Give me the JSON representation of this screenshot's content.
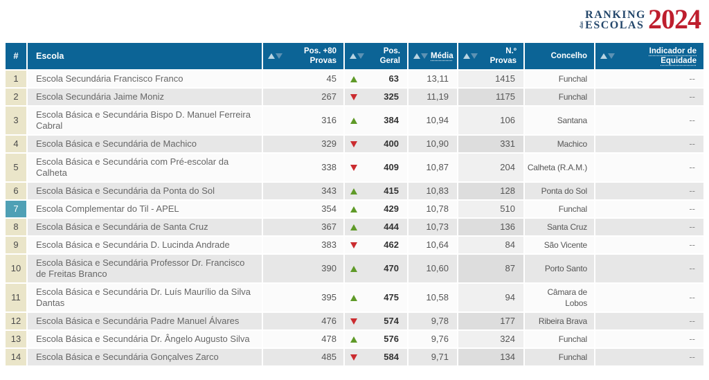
{
  "logo": {
    "title_line1": "Ranking",
    "preposition": "das",
    "title_line2": "Escolas",
    "year": "2024"
  },
  "table": {
    "columns": [
      {
        "key": "rank",
        "label": "#",
        "sortable": false
      },
      {
        "key": "escola",
        "label": "Escola",
        "sortable": false
      },
      {
        "key": "pos80_provas",
        "label": "Pos. +80 Provas",
        "sortable": true
      },
      {
        "key": "pos_geral",
        "label": "Pos. Geral",
        "sortable": true
      },
      {
        "key": "media",
        "label": "Média",
        "sortable": true,
        "tooltip": true
      },
      {
        "key": "n_provas",
        "label": "N.º Provas",
        "sortable": true
      },
      {
        "key": "concelho",
        "label": "Concelho",
        "sortable": false
      },
      {
        "key": "equidade",
        "label": "Indicador de Equidade",
        "sortable": true,
        "tooltip": true
      }
    ],
    "rows": [
      {
        "rank": "1",
        "escola": "Escola Secundária Francisco Franco",
        "pos80_provas": "45",
        "trend": "up",
        "pos_geral": "63",
        "media": "13,11",
        "n_provas": "1415",
        "concelho": "Funchal",
        "equidade": "--",
        "highlight": false
      },
      {
        "rank": "2",
        "escola": "Escola Secundária Jaime Moniz",
        "pos80_provas": "267",
        "trend": "down",
        "pos_geral": "325",
        "media": "11,19",
        "n_provas": "1175",
        "concelho": "Funchal",
        "equidade": "--",
        "highlight": false
      },
      {
        "rank": "3",
        "escola": "Escola Básica e Secundária Bispo D. Manuel Ferreira Cabral",
        "pos80_provas": "316",
        "trend": "up",
        "pos_geral": "384",
        "media": "10,94",
        "n_provas": "106",
        "concelho": "Santana",
        "equidade": "--",
        "highlight": false
      },
      {
        "rank": "4",
        "escola": "Escola Básica e Secundária de Machico",
        "pos80_provas": "329",
        "trend": "down",
        "pos_geral": "400",
        "media": "10,90",
        "n_provas": "331",
        "concelho": "Machico",
        "equidade": "--",
        "highlight": false
      },
      {
        "rank": "5",
        "escola": "Escola Básica e Secundária com Pré-escolar da Calheta",
        "pos80_provas": "338",
        "trend": "down",
        "pos_geral": "409",
        "media": "10,87",
        "n_provas": "204",
        "concelho": "Calheta (R.A.M.)",
        "equidade": "--",
        "highlight": false
      },
      {
        "rank": "6",
        "escola": "Escola Básica e Secundária da Ponta do Sol",
        "pos80_provas": "343",
        "trend": "up",
        "pos_geral": "415",
        "media": "10,83",
        "n_provas": "128",
        "concelho": "Ponta do Sol",
        "equidade": "--",
        "highlight": false
      },
      {
        "rank": "7",
        "escola": "Escola Complementar do Til - APEL",
        "pos80_provas": "354",
        "trend": "up",
        "pos_geral": "429",
        "media": "10,78",
        "n_provas": "510",
        "concelho": "Funchal",
        "equidade": "--",
        "highlight": true
      },
      {
        "rank": "8",
        "escola": "Escola Básica e Secundária de Santa Cruz",
        "pos80_provas": "367",
        "trend": "up",
        "pos_geral": "444",
        "media": "10,73",
        "n_provas": "136",
        "concelho": "Santa Cruz",
        "equidade": "--",
        "highlight": false
      },
      {
        "rank": "9",
        "escola": "Escola Básica e Secundária D. Lucinda Andrade",
        "pos80_provas": "383",
        "trend": "down",
        "pos_geral": "462",
        "media": "10,64",
        "n_provas": "84",
        "concelho": "São Vicente",
        "equidade": "--",
        "highlight": false
      },
      {
        "rank": "10",
        "escola": "Escola Básica e Secundária Professor Dr. Francisco de Freitas Branco",
        "pos80_provas": "390",
        "trend": "up",
        "pos_geral": "470",
        "media": "10,60",
        "n_provas": "87",
        "concelho": "Porto Santo",
        "equidade": "--",
        "highlight": false
      },
      {
        "rank": "11",
        "escola": "Escola Básica e Secundária Dr. Luís Maurílio da Silva Dantas",
        "pos80_provas": "395",
        "trend": "up",
        "pos_geral": "475",
        "media": "10,58",
        "n_provas": "94",
        "concelho": "Câmara de Lobos",
        "equidade": "--",
        "highlight": false
      },
      {
        "rank": "12",
        "escola": "Escola Básica e Secundária Padre Manuel Álvares",
        "pos80_provas": "476",
        "trend": "down",
        "pos_geral": "574",
        "media": "9,78",
        "n_provas": "177",
        "concelho": "Ribeira Brava",
        "equidade": "--",
        "highlight": false
      },
      {
        "rank": "13",
        "escola": "Escola Básica e Secundária Dr. Ângelo Augusto Silva",
        "pos80_provas": "478",
        "trend": "up",
        "pos_geral": "576",
        "media": "9,76",
        "n_provas": "324",
        "concelho": "Funchal",
        "equidade": "--",
        "highlight": false
      },
      {
        "rank": "14",
        "escola": "Escola Básica e Secundária Gonçalves Zarco",
        "pos80_provas": "485",
        "trend": "down",
        "pos_geral": "584",
        "media": "9,71",
        "n_provas": "134",
        "concelho": "Funchal",
        "equidade": "--",
        "highlight": false
      }
    ]
  },
  "icons": {
    "sort_asc": "triangle-up",
    "sort_desc": "triangle-down",
    "rank_up": "triangle-up-green",
    "rank_down": "triangle-down-red"
  },
  "colors": {
    "header_bg": "#0c6496",
    "header_text": "#ffffff",
    "rank_col_bg": "#eae5c9",
    "rank_highlight_bg": "#4fa0b5",
    "row_odd": "#fbfbfb",
    "row_even": "#e7e7e7",
    "trend_up": "#5f9a28",
    "trend_down": "#cb2c30",
    "sort_up": "#b9d4e2",
    "sort_down": "#5d92b4",
    "text_primary": "#555555",
    "text_school": "#666666",
    "text_bold": "#333333",
    "logo_navy": "#24476b",
    "logo_red": "#be1e2d"
  }
}
